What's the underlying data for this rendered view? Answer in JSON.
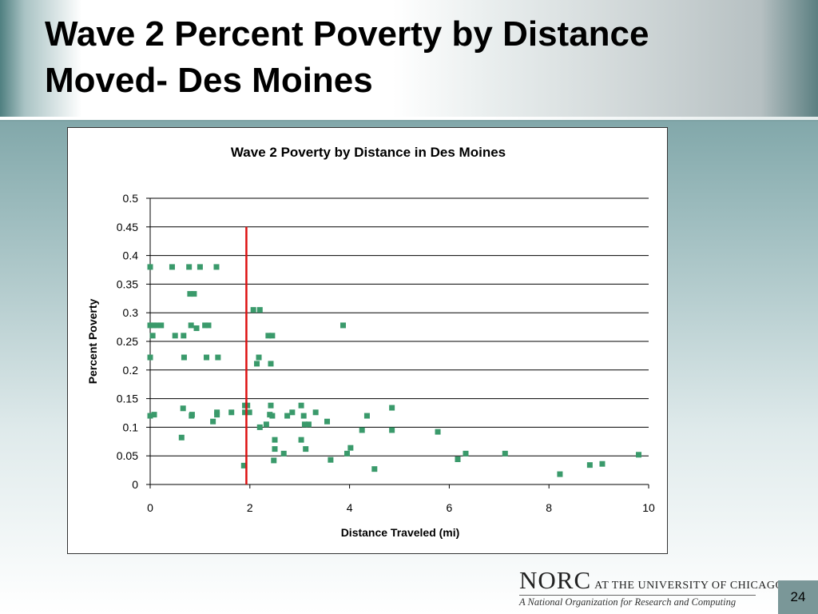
{
  "slide": {
    "title": "Wave 2 Percent Poverty by Distance\nMoved- Des Moines",
    "page_number": "24"
  },
  "logo": {
    "main": "NORC",
    "rest": "AT THE UNIVERSITY OF CHICAGO",
    "tagline": "A National Organization for Research and Computing"
  },
  "chart_data": {
    "type": "scatter",
    "title": "Wave 2 Poverty by Distance in Des Moines",
    "xlabel": "Distance Traveled (mi)",
    "ylabel": "Percent Poverty",
    "xlim": [
      0,
      10
    ],
    "ylim": [
      0,
      0.5
    ],
    "xticks": [
      "0",
      "2",
      "4",
      "6",
      "8",
      "10"
    ],
    "yticks": [
      "0",
      "0.05",
      "0.1",
      "0.15",
      "0.2",
      "0.25",
      "0.3",
      "0.35",
      "0.4",
      "0.45",
      "0.5"
    ],
    "grid": "horizontal",
    "marker_color": "#3a9a6b",
    "reference_line": {
      "x": 1.93,
      "y_from": 0,
      "y_to": 0.45,
      "color": "#dd1111"
    },
    "points": [
      [
        0.0,
        0.38
      ],
      [
        0.0,
        0.278
      ],
      [
        0.05,
        0.26
      ],
      [
        0.07,
        0.278
      ],
      [
        0.13,
        0.278
      ],
      [
        0.22,
        0.278
      ],
      [
        0.0,
        0.222
      ],
      [
        0.0,
        0.12
      ],
      [
        0.08,
        0.122
      ],
      [
        0.44,
        0.38
      ],
      [
        0.78,
        0.38
      ],
      [
        1.0,
        0.38
      ],
      [
        1.33,
        0.38
      ],
      [
        0.8,
        0.333
      ],
      [
        0.88,
        0.333
      ],
      [
        0.82,
        0.278
      ],
      [
        1.1,
        0.278
      ],
      [
        1.17,
        0.278
      ],
      [
        0.93,
        0.273
      ],
      [
        0.5,
        0.26
      ],
      [
        0.67,
        0.26
      ],
      [
        0.68,
        0.222
      ],
      [
        1.13,
        0.222
      ],
      [
        1.36,
        0.222
      ],
      [
        0.66,
        0.133
      ],
      [
        0.84,
        0.122
      ],
      [
        0.83,
        0.12
      ],
      [
        1.26,
        0.11
      ],
      [
        1.34,
        0.126
      ],
      [
        1.34,
        0.122
      ],
      [
        1.63,
        0.126
      ],
      [
        0.63,
        0.082
      ],
      [
        1.88,
        0.033
      ],
      [
        1.9,
        0.138
      ],
      [
        1.95,
        0.138
      ],
      [
        1.9,
        0.126
      ],
      [
        1.99,
        0.126
      ],
      [
        2.07,
        0.305
      ],
      [
        2.2,
        0.305
      ],
      [
        2.37,
        0.26
      ],
      [
        2.45,
        0.26
      ],
      [
        2.18,
        0.222
      ],
      [
        2.14,
        0.211
      ],
      [
        2.42,
        0.211
      ],
      [
        2.42,
        0.138
      ],
      [
        2.4,
        0.122
      ],
      [
        2.45,
        0.12
      ],
      [
        2.2,
        0.1
      ],
      [
        2.33,
        0.105
      ],
      [
        2.5,
        0.078
      ],
      [
        2.5,
        0.062
      ],
      [
        2.48,
        0.042
      ],
      [
        2.68,
        0.054
      ],
      [
        2.75,
        0.12
      ],
      [
        2.85,
        0.126
      ],
      [
        3.03,
        0.138
      ],
      [
        3.08,
        0.12
      ],
      [
        3.1,
        0.105
      ],
      [
        3.18,
        0.105
      ],
      [
        3.32,
        0.126
      ],
      [
        3.55,
        0.11
      ],
      [
        3.03,
        0.078
      ],
      [
        3.12,
        0.062
      ],
      [
        3.62,
        0.043
      ],
      [
        3.87,
        0.278
      ],
      [
        3.95,
        0.054
      ],
      [
        4.02,
        0.064
      ],
      [
        4.25,
        0.095
      ],
      [
        4.35,
        0.12
      ],
      [
        4.5,
        0.027
      ],
      [
        4.85,
        0.134
      ],
      [
        4.85,
        0.095
      ],
      [
        5.77,
        0.092
      ],
      [
        6.17,
        0.044
      ],
      [
        6.33,
        0.054
      ],
      [
        7.12,
        0.054
      ],
      [
        8.22,
        0.018
      ],
      [
        8.82,
        0.034
      ],
      [
        9.07,
        0.036
      ],
      [
        9.8,
        0.052
      ]
    ]
  }
}
